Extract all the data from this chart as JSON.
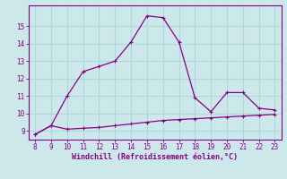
{
  "xlabel": "Windchill (Refroidissement éolien,°C)",
  "x_main": [
    8,
    9,
    10,
    11,
    12,
    13,
    14,
    15,
    16,
    17,
    18,
    19,
    20,
    21,
    22,
    23
  ],
  "y_main": [
    8.8,
    9.3,
    11.0,
    12.4,
    12.7,
    13.0,
    14.1,
    15.6,
    15.5,
    14.1,
    10.9,
    10.1,
    11.2,
    11.2,
    10.3,
    10.2
  ],
  "x_secondary": [
    8,
    9,
    10,
    11,
    12,
    13,
    14,
    15,
    16,
    17,
    18,
    19,
    20,
    21,
    22,
    23
  ],
  "y_secondary": [
    8.8,
    9.3,
    9.1,
    9.15,
    9.2,
    9.3,
    9.4,
    9.5,
    9.6,
    9.65,
    9.7,
    9.75,
    9.8,
    9.85,
    9.9,
    9.95
  ],
  "line_color": "#880088",
  "bg_color": "#cce8ea",
  "grid_color": "#b0d8dc",
  "text_color": "#880088",
  "xlim": [
    7.6,
    23.4
  ],
  "ylim": [
    8.5,
    16.2
  ],
  "xticks": [
    8,
    9,
    10,
    11,
    12,
    13,
    14,
    15,
    16,
    17,
    18,
    19,
    20,
    21,
    22,
    23
  ],
  "yticks": [
    9,
    10,
    11,
    12,
    13,
    14,
    15
  ]
}
